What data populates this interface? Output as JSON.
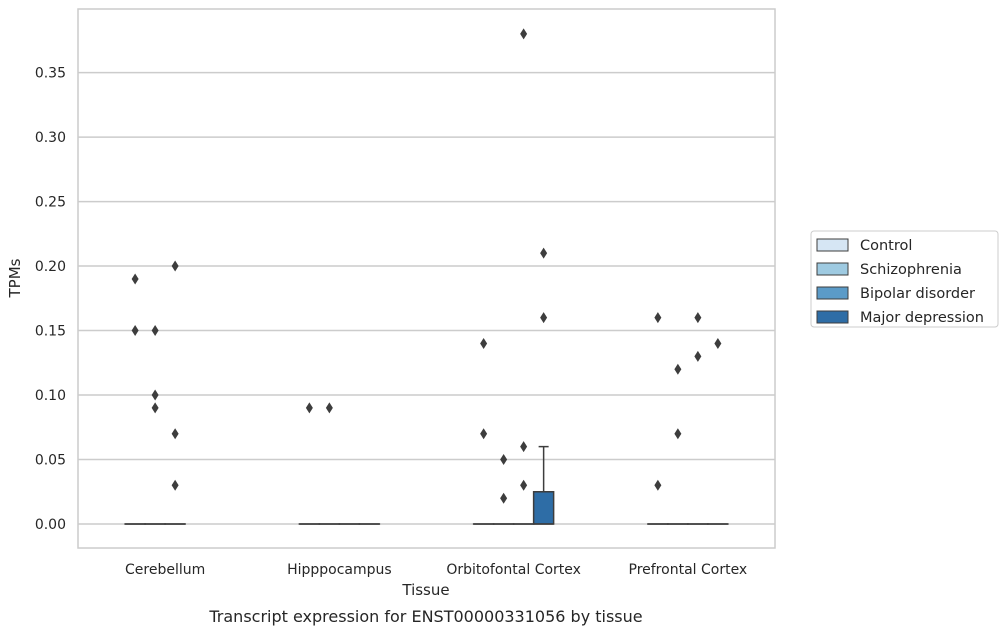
{
  "chart_data": {
    "type": "box",
    "xlabel": "Tissue",
    "ylabel": "TPMs",
    "caption": "Transcript expression for ENST00000331056 by tissue",
    "ylim": [
      -0.018,
      0.398
    ],
    "y_ticks": [
      "0.00",
      "0.05",
      "0.10",
      "0.15",
      "0.20",
      "0.25",
      "0.30",
      "0.35"
    ],
    "grid": "horizontal",
    "legend_placement": "right",
    "categories": [
      "Cerebellum",
      "Hipppocampus",
      "Orbitofontal Cortex",
      "Prefrontal Cortex"
    ],
    "series": [
      {
        "name": "Control",
        "color": "#d6e6f4",
        "boxes": [
          {
            "q1": 0,
            "median": 0,
            "q3": 0,
            "whisker_low": 0,
            "whisker_high": 0,
            "outliers": [
              0.15,
              0.19
            ]
          },
          {
            "q1": 0,
            "median": 0,
            "q3": 0,
            "whisker_low": 0,
            "whisker_high": 0,
            "outliers": [
              0.09
            ]
          },
          {
            "q1": 0,
            "median": 0,
            "q3": 0,
            "whisker_low": 0,
            "whisker_high": 0,
            "outliers": [
              0.07,
              0.14
            ]
          },
          {
            "q1": 0,
            "median": 0,
            "q3": 0,
            "whisker_low": 0,
            "whisker_high": 0,
            "outliers": [
              0.03,
              0.16
            ]
          }
        ]
      },
      {
        "name": "Schizophrenia",
        "color": "#9ecae1",
        "boxes": [
          {
            "q1": 0,
            "median": 0,
            "q3": 0,
            "whisker_low": 0,
            "whisker_high": 0,
            "outliers": [
              0.09,
              0.1,
              0.15
            ]
          },
          {
            "q1": 0,
            "median": 0,
            "q3": 0,
            "whisker_low": 0,
            "whisker_high": 0,
            "outliers": [
              0.09
            ]
          },
          {
            "q1": 0,
            "median": 0,
            "q3": 0,
            "whisker_low": 0,
            "whisker_high": 0,
            "outliers": [
              0.02,
              0.05
            ]
          },
          {
            "q1": 0,
            "median": 0,
            "q3": 0,
            "whisker_low": 0,
            "whisker_high": 0,
            "outliers": [
              0.07,
              0.12
            ]
          }
        ]
      },
      {
        "name": "Bipolar disorder",
        "color": "#5b9bc8",
        "boxes": [
          {
            "q1": 0,
            "median": 0,
            "q3": 0,
            "whisker_low": 0,
            "whisker_high": 0,
            "outliers": [
              0.03,
              0.07,
              0.2
            ]
          },
          {
            "q1": 0,
            "median": 0,
            "q3": 0,
            "whisker_low": 0,
            "whisker_high": 0,
            "outliers": []
          },
          {
            "q1": 0,
            "median": 0,
            "q3": 0,
            "whisker_low": 0,
            "whisker_high": 0,
            "outliers": [
              0.03,
              0.06,
              0.38
            ]
          },
          {
            "q1": 0,
            "median": 0,
            "q3": 0,
            "whisker_low": 0,
            "whisker_high": 0,
            "outliers": [
              0.13,
              0.16
            ]
          }
        ]
      },
      {
        "name": "Major depression",
        "color": "#2e6da6",
        "boxes": [
          null,
          {
            "q1": 0,
            "median": 0,
            "q3": 0,
            "whisker_low": 0,
            "whisker_high": 0,
            "outliers": []
          },
          {
            "q1": 0,
            "median": 0,
            "q3": 0.025,
            "whisker_low": 0,
            "whisker_high": 0.06,
            "outliers": [
              0.16,
              0.21
            ]
          },
          {
            "q1": 0,
            "median": 0,
            "q3": 0,
            "whisker_low": 0,
            "whisker_high": 0,
            "outliers": [
              0.14
            ]
          }
        ]
      }
    ]
  }
}
